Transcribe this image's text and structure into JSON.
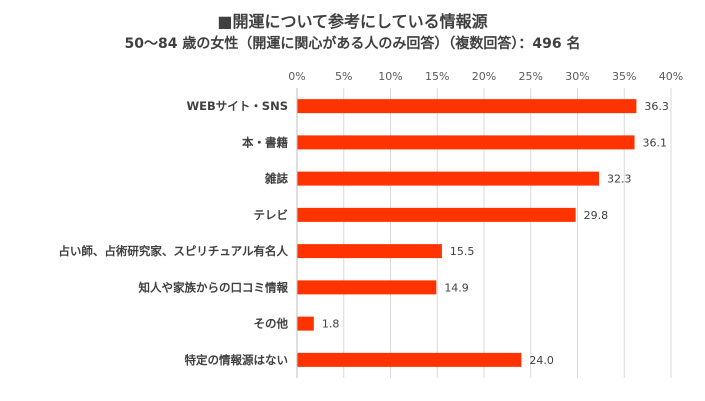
{
  "chart_data": {
    "type": "bar",
    "orientation": "horizontal",
    "title": "■開運について参考にしている情報源",
    "subtitle": "50～84 歳の女性（開運に関心がある人のみ回答）（複数回答）：496 名",
    "categories": [
      "WEBサイト・SNS",
      "本・書籍",
      "雑誌",
      "テレビ",
      "占い師、占術研究家、スピリチュアル有名人",
      "知人や家族からの口コミ情報",
      "その他",
      "特定の情報源はない"
    ],
    "values": [
      36.3,
      36.1,
      32.3,
      29.8,
      15.5,
      14.9,
      1.8,
      24.0
    ],
    "value_labels": [
      "36.3",
      "36.1",
      "32.3",
      "29.8",
      "15.5",
      "14.9",
      "1.8",
      "24.0"
    ],
    "xlim": [
      0,
      40
    ],
    "x_ticks": [
      "0%",
      "5%",
      "10%",
      "15%",
      "20%",
      "25%",
      "30%",
      "35%",
      "40%"
    ],
    "x_tick_values": [
      0,
      5,
      10,
      15,
      20,
      25,
      30,
      35,
      40
    ],
    "x_axis_position": "top",
    "grid": true,
    "legend": "none",
    "bar_color": "#FF3300"
  }
}
